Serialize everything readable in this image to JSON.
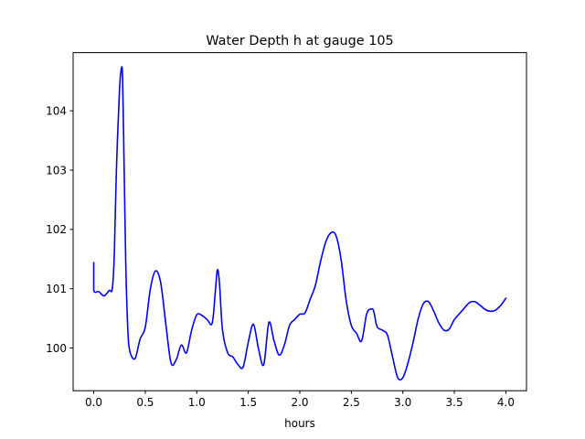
{
  "chart_data": {
    "type": "line",
    "title": "Water Depth h at gauge 105",
    "xlabel": "hours",
    "ylabel": "",
    "xlim": [
      -0.2,
      4.2
    ],
    "ylim": [
      99.28,
      104.98
    ],
    "xticks": [
      0.0,
      0.5,
      1.0,
      1.5,
      2.0,
      2.5,
      3.0,
      3.5,
      4.0
    ],
    "xtick_labels": [
      "0.0",
      "0.5",
      "1.0",
      "1.5",
      "2.0",
      "2.5",
      "3.0",
      "3.5",
      "4.0"
    ],
    "yticks": [
      100,
      101,
      102,
      103,
      104
    ],
    "ytick_labels": [
      "100",
      "101",
      "102",
      "103",
      "104"
    ],
    "grid": false,
    "line_color": "#0000ff",
    "series": [
      {
        "x": [
          0.0,
          0.0,
          0.05,
          0.1,
          0.15,
          0.18,
          0.2,
          0.22,
          0.25,
          0.27,
          0.28,
          0.29,
          0.31,
          0.33,
          0.35,
          0.4,
          0.45,
          0.5,
          0.55,
          0.6,
          0.65,
          0.7,
          0.75,
          0.8,
          0.85,
          0.9,
          0.95,
          1.0,
          1.05,
          1.1,
          1.15,
          1.18,
          1.2,
          1.22,
          1.25,
          1.3,
          1.35,
          1.4,
          1.45,
          1.5,
          1.55,
          1.6,
          1.65,
          1.7,
          1.75,
          1.8,
          1.85,
          1.9,
          1.95,
          2.0,
          2.05,
          2.1,
          2.15,
          2.2,
          2.25,
          2.3,
          2.35,
          2.4,
          2.45,
          2.5,
          2.55,
          2.6,
          2.65,
          2.7,
          2.72,
          2.75,
          2.8,
          2.85,
          2.9,
          2.95,
          3.0,
          3.05,
          3.1,
          3.15,
          3.2,
          3.25,
          3.3,
          3.35,
          3.4,
          3.45,
          3.5,
          3.55,
          3.6,
          3.65,
          3.7,
          3.75,
          3.8,
          3.85,
          3.9,
          3.95,
          4.0
        ],
        "y": [
          101.44,
          100.98,
          100.95,
          100.88,
          100.97,
          101.0,
          101.6,
          103.0,
          104.35,
          104.73,
          104.55,
          103.6,
          101.5,
          100.35,
          99.95,
          99.82,
          100.15,
          100.35,
          101.0,
          101.3,
          101.1,
          100.4,
          99.75,
          99.8,
          100.05,
          99.92,
          100.3,
          100.56,
          100.55,
          100.48,
          100.42,
          100.95,
          101.32,
          101.1,
          100.3,
          99.92,
          99.85,
          99.72,
          99.68,
          100.1,
          100.4,
          99.98,
          99.72,
          100.43,
          100.12,
          99.88,
          100.05,
          100.38,
          100.48,
          100.57,
          100.59,
          100.82,
          101.05,
          101.45,
          101.78,
          101.94,
          101.9,
          101.5,
          100.8,
          100.38,
          100.25,
          100.12,
          100.58,
          100.66,
          100.6,
          100.36,
          100.3,
          100.22,
          99.85,
          99.5,
          99.5,
          99.75,
          100.1,
          100.5,
          100.75,
          100.78,
          100.62,
          100.42,
          100.3,
          100.32,
          100.48,
          100.58,
          100.68,
          100.77,
          100.78,
          100.72,
          100.65,
          100.62,
          100.64,
          100.72,
          100.84
        ]
      }
    ]
  }
}
